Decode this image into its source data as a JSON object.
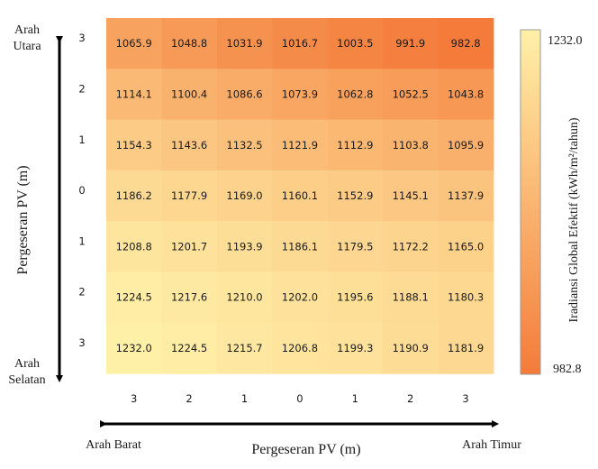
{
  "chart_data": {
    "type": "heatmap",
    "title": "",
    "xlabel": "Pergeseran PV (m)",
    "ylabel": "Pergeseran PV (m)",
    "x_ticks": [
      "3",
      "2",
      "1",
      "0",
      "1",
      "2",
      "3"
    ],
    "y_ticks": [
      "3",
      "2",
      "1",
      "0",
      "1",
      "2",
      "3"
    ],
    "x_dir_left": "Arah Barat",
    "x_dir_right": "Arah Timur",
    "y_dir_top": [
      "Arah",
      "Utara"
    ],
    "y_dir_bottom": [
      "Arah",
      "Selatan"
    ],
    "values": [
      [
        1065.9,
        1048.8,
        1031.9,
        1016.7,
        1003.5,
        991.9,
        982.8
      ],
      [
        1114.1,
        1100.4,
        1086.6,
        1073.9,
        1062.8,
        1052.5,
        1043.8
      ],
      [
        1154.3,
        1143.6,
        1132.5,
        1121.9,
        1112.9,
        1103.8,
        1095.9
      ],
      [
        1186.2,
        1177.9,
        1169.0,
        1160.1,
        1152.9,
        1145.1,
        1137.9
      ],
      [
        1208.8,
        1201.7,
        1193.9,
        1186.1,
        1179.5,
        1172.2,
        1165.0
      ],
      [
        1224.5,
        1217.6,
        1210.0,
        1202.0,
        1195.6,
        1188.1,
        1180.3
      ],
      [
        1232.0,
        1224.5,
        1215.7,
        1206.8,
        1199.3,
        1190.9,
        1181.9
      ]
    ],
    "value_labels": [
      [
        "1065.9",
        "1048.8",
        "1031.9",
        "1016.7",
        "1003.5",
        "991.9",
        "982.8"
      ],
      [
        "1114.1",
        "1100.4",
        "1086.6",
        "1073.9",
        "1062.8",
        "1052.5",
        "1043.8"
      ],
      [
        "1154.3",
        "1143.6",
        "1132.5",
        "1121.9",
        "1112.9",
        "1103.8",
        "1095.9"
      ],
      [
        "1186.2",
        "1177.9",
        "1169.0",
        "1160.1",
        "1152.9",
        "1145.1",
        "1137.9"
      ],
      [
        "1208.8",
        "1201.7",
        "1193.9",
        "1186.1",
        "1179.5",
        "1172.2",
        "1165.0"
      ],
      [
        "1224.5",
        "1217.6",
        "1210.0",
        "1202.0",
        "1195.6",
        "1188.1",
        "1180.3"
      ],
      [
        "1232.0",
        "1224.5",
        "1215.7",
        "1206.8",
        "1199.3",
        "1190.9",
        "1181.9"
      ]
    ],
    "colorbar": {
      "label": "Iradiansi Global Efektif (kWh/m²/tahun)",
      "max": 1232.0,
      "min": 982.8,
      "max_label": "1232.0",
      "min_label": "982.8",
      "color_high": "#fff0a8",
      "color_low": "#f47b3a"
    }
  }
}
